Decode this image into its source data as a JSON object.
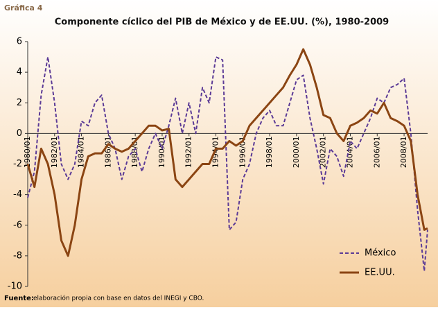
{
  "label": "Gráfica 4",
  "chart_data": {
    "type": "line",
    "title": "Componente cíclico del PIB de México y de EE.UU. (%), 1980-2009",
    "x": [
      1980,
      1980.5,
      1981,
      1981.5,
      1982,
      1982.5,
      1983,
      1983.5,
      1984,
      1984.5,
      1985,
      1985.5,
      1986,
      1986.5,
      1987,
      1987.5,
      1988,
      1988.5,
      1989,
      1989.5,
      1990,
      1990.5,
      1991,
      1991.5,
      1992,
      1992.5,
      1993,
      1993.5,
      1994,
      1994.5,
      1995,
      1995.5,
      1996,
      1996.5,
      1997,
      1997.5,
      1998,
      1998.5,
      1999,
      1999.5,
      2000,
      2000.5,
      2001,
      2001.5,
      2002,
      2002.5,
      2003,
      2003.5,
      2004,
      2004.5,
      2005,
      2005.5,
      2006,
      2006.5,
      2007,
      2007.5,
      2008,
      2008.5,
      2009,
      2009.5,
      2009.75
    ],
    "series": [
      {
        "name": "México",
        "color": "#5b3a96",
        "dashed": true,
        "values": [
          -4.2,
          -2.5,
          2.5,
          5,
          2,
          -2,
          -3,
          -2,
          0.8,
          0.5,
          2,
          2.5,
          0,
          -1,
          -3,
          -1.5,
          -1,
          -2.5,
          -1,
          0,
          -1,
          0.5,
          2.3,
          0,
          2,
          0,
          3,
          2,
          5,
          4.8,
          -6.3,
          -5.8,
          -3,
          -2,
          0,
          1,
          1.5,
          0.5,
          0.5,
          2,
          3.5,
          3.8,
          1,
          -1,
          -3.3,
          -1,
          -1.5,
          -2.8,
          -0.5,
          -1,
          0,
          1,
          2.3,
          2,
          3,
          3.2,
          3.6,
          0,
          -5,
          -9,
          -6.3
        ]
      },
      {
        "name": "EE.UU.",
        "color": "#8b4513",
        "dashed": false,
        "values": [
          -2,
          -3.5,
          -1,
          -2,
          -4,
          -7,
          -8,
          -6,
          -3,
          -1.5,
          -1.3,
          -1.3,
          -0.7,
          -1,
          -1.2,
          -1,
          -0.5,
          0,
          0.5,
          0.5,
          0.2,
          0.3,
          -3,
          -3.5,
          -3,
          -2.5,
          -2,
          -2,
          -1,
          -1,
          -0.5,
          -0.8,
          -0.5,
          0.5,
          1,
          1.5,
          2,
          2.5,
          3,
          3.8,
          4.5,
          5.5,
          4.5,
          3,
          1.2,
          1,
          0,
          -0.5,
          0.5,
          0.7,
          1,
          1.5,
          1.3,
          2,
          1,
          0.8,
          0.5,
          -0.5,
          -4,
          -6.3,
          -6.2
        ]
      }
    ],
    "xlim": [
      1980,
      2009.75
    ],
    "xticks": [
      {
        "value": 1980,
        "label": "1980/01"
      },
      {
        "value": 1982,
        "label": "1982/01"
      },
      {
        "value": 1984,
        "label": "1984/01"
      },
      {
        "value": 1986,
        "label": "1986/01"
      },
      {
        "value": 1988,
        "label": "1988/01"
      },
      {
        "value": 1990,
        "label": "1990/01"
      },
      {
        "value": 1992,
        "label": "1992/01"
      },
      {
        "value": 1994,
        "label": "1994/01"
      },
      {
        "value": 1996,
        "label": "1996/01"
      },
      {
        "value": 1998,
        "label": "1998/01"
      },
      {
        "value": 2000,
        "label": "2000/01"
      },
      {
        "value": 2002,
        "label": "2002/01"
      },
      {
        "value": 2004,
        "label": "2004/01"
      },
      {
        "value": 2006,
        "label": "2006/01"
      },
      {
        "value": 2008,
        "label": "2008/01"
      }
    ],
    "ylim": [
      -10,
      6
    ],
    "yticks": [
      -10,
      -8,
      -6,
      -4,
      -2,
      0,
      2,
      4,
      6
    ],
    "grid": false,
    "legend": "lower right"
  },
  "source_label": "Fuente:",
  "source": "elaboración propia con base en datos del INEGI y CBO."
}
